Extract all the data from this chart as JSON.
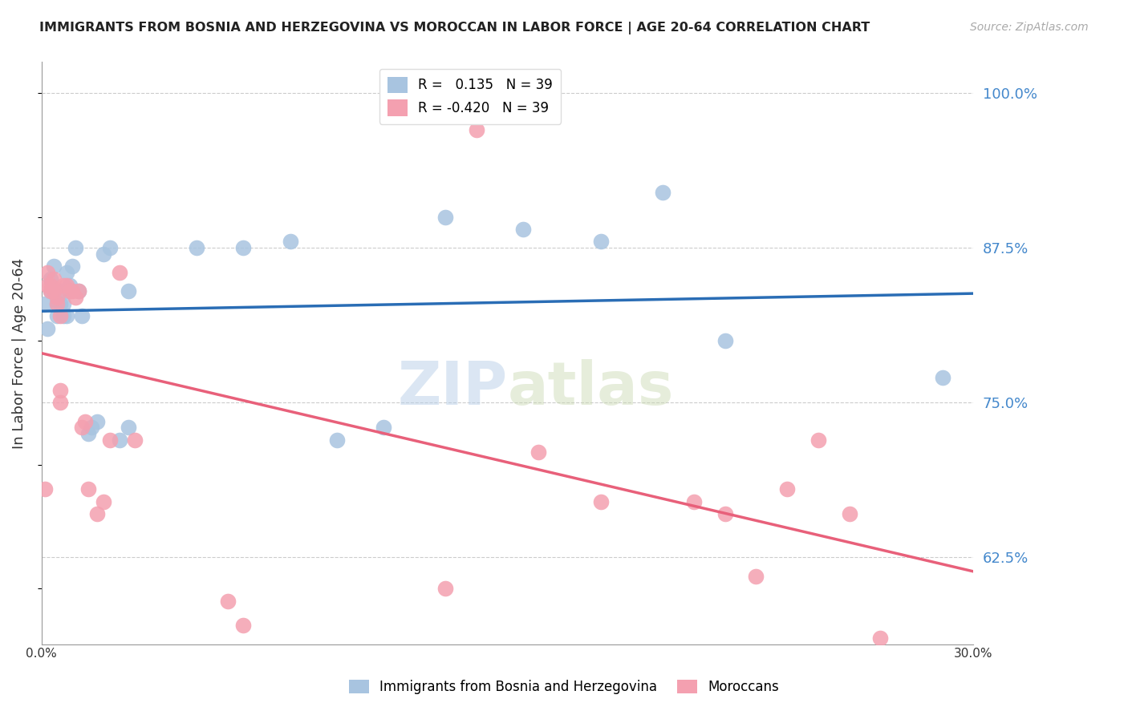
{
  "title": "IMMIGRANTS FROM BOSNIA AND HERZEGOVINA VS MOROCCAN IN LABOR FORCE | AGE 20-64 CORRELATION CHART",
  "source": "Source: ZipAtlas.com",
  "ylabel": "In Labor Force | Age 20-64",
  "y_tick_values": [
    0.625,
    0.75,
    0.875,
    1.0
  ],
  "x_range": [
    0.0,
    0.3
  ],
  "y_range": [
    0.555,
    1.025
  ],
  "r_bosnia": 0.135,
  "r_morocco": -0.42,
  "n_bosnia": 39,
  "n_morocco": 39,
  "color_bosnia": "#a8c4e0",
  "color_morocco": "#f4a0b0",
  "line_color_bosnia": "#2a6db5",
  "line_color_morocco": "#e8607a",
  "legend_label_bosnia": "Immigrants from Bosnia and Herzegovina",
  "legend_label_morocco": "Moroccans",
  "watermark_zip": "ZIP",
  "watermark_atlas": "atlas",
  "bosnia_x": [
    0.001,
    0.002,
    0.003,
    0.003,
    0.004,
    0.004,
    0.005,
    0.005,
    0.006,
    0.006,
    0.007,
    0.007,
    0.008,
    0.008,
    0.009,
    0.009,
    0.01,
    0.011,
    0.012,
    0.013,
    0.015,
    0.016,
    0.018,
    0.02,
    0.022,
    0.025,
    0.028,
    0.028,
    0.05,
    0.065,
    0.08,
    0.095,
    0.11,
    0.13,
    0.155,
    0.18,
    0.2,
    0.22,
    0.29
  ],
  "bosnia_y": [
    0.83,
    0.81,
    0.85,
    0.84,
    0.86,
    0.84,
    0.83,
    0.82,
    0.84,
    0.83,
    0.82,
    0.83,
    0.855,
    0.82,
    0.845,
    0.84,
    0.86,
    0.875,
    0.84,
    0.82,
    0.725,
    0.73,
    0.735,
    0.87,
    0.875,
    0.72,
    0.73,
    0.84,
    0.875,
    0.875,
    0.88,
    0.72,
    0.73,
    0.9,
    0.89,
    0.88,
    0.92,
    0.8,
    0.77
  ],
  "morocco_x": [
    0.001,
    0.002,
    0.002,
    0.003,
    0.003,
    0.004,
    0.004,
    0.005,
    0.005,
    0.006,
    0.006,
    0.006,
    0.007,
    0.008,
    0.009,
    0.01,
    0.011,
    0.012,
    0.013,
    0.014,
    0.015,
    0.018,
    0.02,
    0.022,
    0.025,
    0.03,
    0.06,
    0.065,
    0.13,
    0.14,
    0.16,
    0.18,
    0.21,
    0.22,
    0.23,
    0.24,
    0.25,
    0.26,
    0.27
  ],
  "morocco_y": [
    0.68,
    0.845,
    0.855,
    0.845,
    0.84,
    0.85,
    0.84,
    0.835,
    0.83,
    0.82,
    0.76,
    0.75,
    0.845,
    0.845,
    0.84,
    0.84,
    0.835,
    0.84,
    0.73,
    0.735,
    0.68,
    0.66,
    0.67,
    0.72,
    0.855,
    0.72,
    0.59,
    0.57,
    0.6,
    0.97,
    0.71,
    0.67,
    0.67,
    0.66,
    0.61,
    0.68,
    0.72,
    0.66,
    0.56
  ]
}
